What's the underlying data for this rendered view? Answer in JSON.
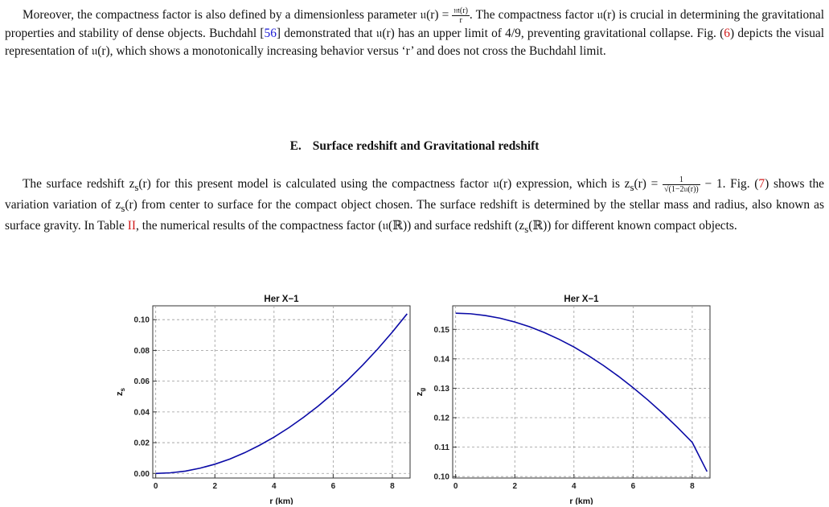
{
  "paragraph1": {
    "p1": "Moreover, the compactness factor is also defined by a dimensionless parameter ",
    "u_r": "𝔲(r)",
    "eq": " = ",
    "frac_num": "𝔪(r)",
    "frac_den": "r",
    "p2": ". The compactness factor 𝔲(r) is crucial in determining the gravitational properties and stability of dense objects. Buchdahl [",
    "ref56": "56",
    "p3": "] demonstrated that 𝔲(r) has an upper limit of 4/9, preventing gravitational collapse. Fig. (",
    "ref6": "6",
    "p4": ") depicts the visual representation of 𝔲(r), which shows a monotonically increasing behavior versus ‘r’ and does not cross the Buchdahl limit."
  },
  "section": {
    "number": "E.",
    "title": "Surface redshift and Gravitational redshift"
  },
  "paragraph2": {
    "p1": "The surface redshift z",
    "p1sub": "s",
    "p1b": "(r) for this present model is calculated using the compactness factor 𝔲(r) expression, which is z",
    "p1bsub": "s",
    "p1c": "(r) = ",
    "frac_num": "1",
    "frac_den": "√(1−2𝔲(r))",
    "p2": " − 1. Fig. (",
    "ref7": "7",
    "p3": ") shows the variation variation of z",
    "p3sub": "s",
    "p3b": "(r) from center to surface for the compact object chosen. The surface redshift is determined by the stellar mass and radius, also known as surface gravity. In Table ",
    "refII": "II",
    "p4": ", the numerical results of the compactness factor (𝔲(ℝ)) and surface redshift (z",
    "p4sub": "s",
    "p4b": "(ℝ)) for different known compact objects."
  },
  "colors": {
    "curve": "#0a0aa6",
    "ref_blue": "#1a1ad6",
    "ref_red": "#d11a1a",
    "grid": "#9a9a9a"
  },
  "chart_data": [
    {
      "type": "line",
      "title": "Her X−1",
      "xlabel": "r (km)",
      "ylabel": "zs",
      "xlim": [
        -0.1,
        8.6
      ],
      "ylim": [
        -0.003,
        0.109
      ],
      "xticks": [
        0,
        2,
        4,
        6,
        8
      ],
      "yticks": [
        0.0,
        0.02,
        0.04,
        0.06,
        0.08,
        0.1
      ],
      "ytick_labels": [
        "0.00",
        "0.02",
        "0.04",
        "0.06",
        "0.08",
        "0.10"
      ],
      "grid": true,
      "x": [
        0,
        0.5,
        1,
        1.5,
        2,
        2.5,
        3,
        3.5,
        4,
        4.5,
        5,
        5.5,
        6,
        6.5,
        7,
        7.5,
        8,
        8.5
      ],
      "y": [
        0.0,
        0.0004,
        0.0015,
        0.0034,
        0.006,
        0.0093,
        0.0134,
        0.0182,
        0.0236,
        0.0297,
        0.0365,
        0.0439,
        0.0521,
        0.0609,
        0.0705,
        0.0808,
        0.0919,
        0.1038
      ]
    },
    {
      "type": "line",
      "title": "Her X−1",
      "xlabel": "r (km)",
      "ylabel": "zg",
      "xlim": [
        -0.1,
        8.6
      ],
      "ylim": [
        0.0995,
        0.158
      ],
      "xticks": [
        0,
        2,
        4,
        6,
        8
      ],
      "yticks": [
        0.1,
        0.11,
        0.12,
        0.13,
        0.14,
        0.15
      ],
      "ytick_labels": [
        "0.10",
        "0.11",
        "0.12",
        "0.13",
        "0.14",
        "0.15"
      ],
      "grid": true,
      "x": [
        0,
        0.5,
        1,
        1.5,
        2,
        2.5,
        3,
        3.5,
        4,
        4.5,
        5,
        5.5,
        6,
        6.5,
        7,
        7.5,
        8,
        8.5
      ],
      "y": [
        0.1555,
        0.1553,
        0.1547,
        0.1538,
        0.1525,
        0.1509,
        0.1489,
        0.1466,
        0.144,
        0.141,
        0.1377,
        0.1341,
        0.1302,
        0.126,
        0.1215,
        0.1167,
        0.1116,
        0.1017
      ]
    }
  ]
}
